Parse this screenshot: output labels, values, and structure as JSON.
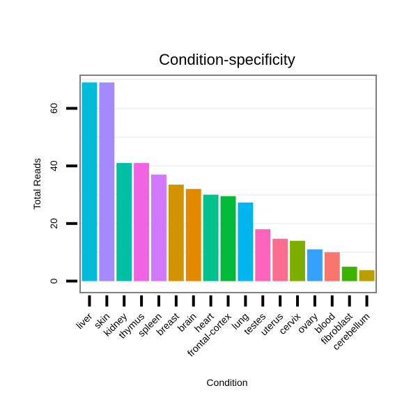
{
  "chart_data": {
    "type": "bar",
    "title": "Condition-specificity",
    "xlabel": "Condition",
    "ylabel": "Total Reads",
    "categories": [
      "liver",
      "skin",
      "kidney",
      "thymus",
      "spleen",
      "breast",
      "brain",
      "heart",
      "frontal-cortex",
      "lung",
      "testes",
      "uterus",
      "cervix",
      "ovary",
      "blood",
      "fibroblast",
      "cerebellum"
    ],
    "values": [
      69,
      69,
      41,
      41,
      37,
      33.5,
      32,
      30,
      29.5,
      27.3,
      18,
      14.7,
      14,
      11,
      10,
      5,
      3.8
    ],
    "colors": [
      "#00BCD8",
      "#A58AFF",
      "#00BFA4",
      "#F263E2",
      "#D277FF",
      "#D39200",
      "#E38900",
      "#00C08B",
      "#00BA38",
      "#00B4F0",
      "#FF62BC",
      "#FF6C91",
      "#7CAE00",
      "#35A2FF",
      "#F8766D",
      "#3BB300",
      "#B79F00"
    ],
    "yticks": [
      0,
      20,
      40,
      60
    ],
    "ylim": [
      -4,
      71.5
    ],
    "grid": true,
    "legend": "none"
  }
}
